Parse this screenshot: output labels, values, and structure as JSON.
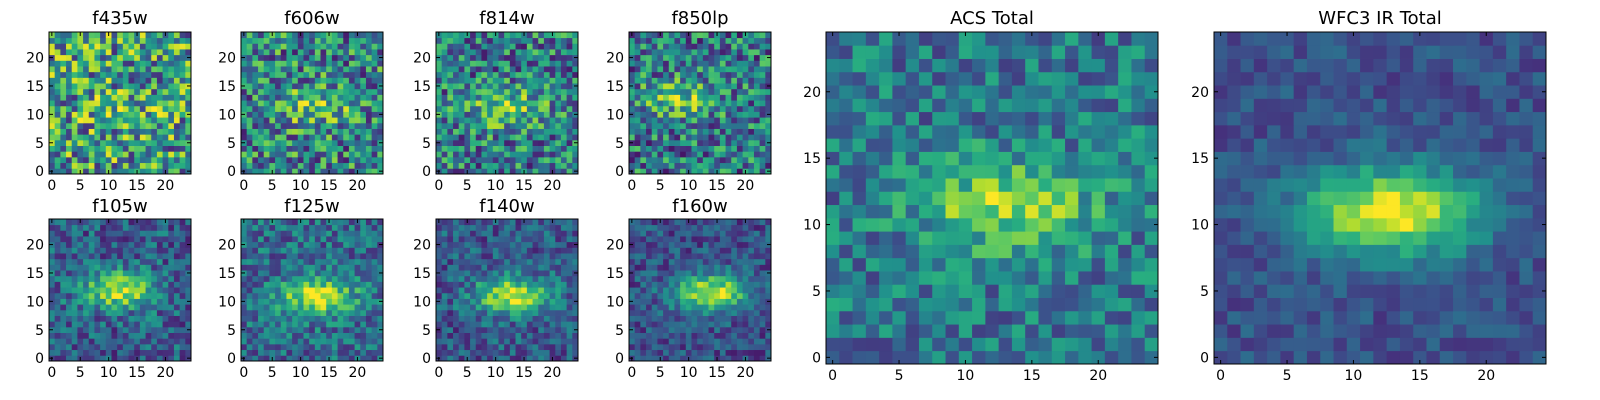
{
  "chart_data": [
    {
      "type": "heatmap",
      "id": "f435w",
      "title": "f435w",
      "size": 25,
      "xlim": [
        0,
        24
      ],
      "ylim": [
        0,
        24
      ],
      "xticks": [
        "0",
        "5",
        "10",
        "15",
        "20"
      ],
      "yticks": [
        "0",
        "5",
        "10",
        "15",
        "20"
      ],
      "seed": 11,
      "blob": {
        "cx": 12,
        "cy": 11,
        "strength": 0.1
      },
      "noise": 0.85,
      "base": 0.55,
      "colormap": "viridis"
    },
    {
      "type": "heatmap",
      "id": "f606w",
      "title": "f606w",
      "size": 25,
      "xlim": [
        0,
        24
      ],
      "ylim": [
        0,
        24
      ],
      "xticks": [
        "0",
        "5",
        "10",
        "15",
        "20"
      ],
      "yticks": [
        "0",
        "5",
        "10",
        "15",
        "20"
      ],
      "seed": 23,
      "blob": {
        "cx": 12,
        "cy": 11.5,
        "strength": 0.3
      },
      "noise": 0.75,
      "base": 0.45,
      "colormap": "viridis"
    },
    {
      "type": "heatmap",
      "id": "f814w",
      "title": "f814w",
      "size": 25,
      "xlim": [
        0,
        24
      ],
      "ylim": [
        0,
        24
      ],
      "xticks": [
        "0",
        "5",
        "10",
        "15",
        "20"
      ],
      "yticks": [
        "0",
        "5",
        "10",
        "15",
        "20"
      ],
      "seed": 37,
      "blob": {
        "cx": 12,
        "cy": 11,
        "strength": 0.35
      },
      "noise": 0.7,
      "base": 0.42,
      "colormap": "viridis"
    },
    {
      "type": "heatmap",
      "id": "f850lp",
      "title": "f850lp",
      "size": 25,
      "xlim": [
        0,
        24
      ],
      "ylim": [
        0,
        24
      ],
      "xticks": [
        "0",
        "5",
        "10",
        "15",
        "20"
      ],
      "yticks": [
        "0",
        "5",
        "10",
        "15",
        "20"
      ],
      "seed": 41,
      "blob": {
        "cx": 9,
        "cy": 13,
        "strength": 0.35
      },
      "noise": 0.7,
      "base": 0.4,
      "colormap": "viridis"
    },
    {
      "type": "heatmap",
      "id": "f105w",
      "title": "f105w",
      "size": 25,
      "xlim": [
        0,
        24
      ],
      "ylim": [
        0,
        24
      ],
      "xticks": [
        "0",
        "5",
        "10",
        "15",
        "20"
      ],
      "yticks": [
        "0",
        "5",
        "10",
        "15",
        "20"
      ],
      "seed": 53,
      "blob": {
        "cx": 12,
        "cy": 12,
        "strength": 0.6
      },
      "noise": 0.45,
      "base": 0.3,
      "colormap": "viridis"
    },
    {
      "type": "heatmap",
      "id": "f125w",
      "title": "f125w",
      "size": 25,
      "xlim": [
        0,
        24
      ],
      "ylim": [
        0,
        24
      ],
      "xticks": [
        "0",
        "5",
        "10",
        "15",
        "20"
      ],
      "yticks": [
        "0",
        "5",
        "10",
        "15",
        "20"
      ],
      "seed": 67,
      "blob": {
        "cx": 13,
        "cy": 11,
        "strength": 0.6
      },
      "noise": 0.45,
      "base": 0.35,
      "colormap": "viridis"
    },
    {
      "type": "heatmap",
      "id": "f140w",
      "title": "f140w",
      "size": 25,
      "xlim": [
        0,
        24
      ],
      "ylim": [
        0,
        24
      ],
      "xticks": [
        "0",
        "5",
        "10",
        "15",
        "20"
      ],
      "yticks": [
        "0",
        "5",
        "10",
        "15",
        "20"
      ],
      "seed": 79,
      "blob": {
        "cx": 13,
        "cy": 11,
        "strength": 0.65
      },
      "noise": 0.4,
      "base": 0.28,
      "colormap": "viridis"
    },
    {
      "type": "heatmap",
      "id": "f160w",
      "title": "f160w",
      "size": 25,
      "xlim": [
        0,
        24
      ],
      "ylim": [
        0,
        24
      ],
      "xticks": [
        "0",
        "5",
        "10",
        "15",
        "20"
      ],
      "yticks": [
        "0",
        "5",
        "10",
        "15",
        "20"
      ],
      "seed": 83,
      "blob": {
        "cx": 14,
        "cy": 11.5,
        "strength": 0.7
      },
      "noise": 0.35,
      "base": 0.25,
      "colormap": "viridis"
    },
    {
      "type": "heatmap",
      "id": "acs_total",
      "title": "ACS Total",
      "size": 25,
      "xlim": [
        0,
        24
      ],
      "ylim": [
        0,
        24
      ],
      "xticks": [
        "0",
        "5",
        "10",
        "15",
        "20"
      ],
      "yticks": [
        "0",
        "5",
        "10",
        "15",
        "20"
      ],
      "seed": 97,
      "blob": {
        "cx": 13,
        "cy": 11.5,
        "strength": 0.45
      },
      "noise": 0.45,
      "base": 0.4,
      "colormap": "viridis"
    },
    {
      "type": "heatmap",
      "id": "wfc3_ir_total",
      "title": "WFC3 IR Total",
      "size": 25,
      "xlim": [
        0,
        24
      ],
      "ylim": [
        0,
        24
      ],
      "xticks": [
        "0",
        "5",
        "10",
        "15",
        "20"
      ],
      "yticks": [
        "0",
        "5",
        "10",
        "15",
        "20"
      ],
      "seed": 101,
      "blob": {
        "cx": 13,
        "cy": 11,
        "strength": 0.75
      },
      "noise": 0.22,
      "base": 0.25,
      "colormap": "viridis"
    }
  ]
}
